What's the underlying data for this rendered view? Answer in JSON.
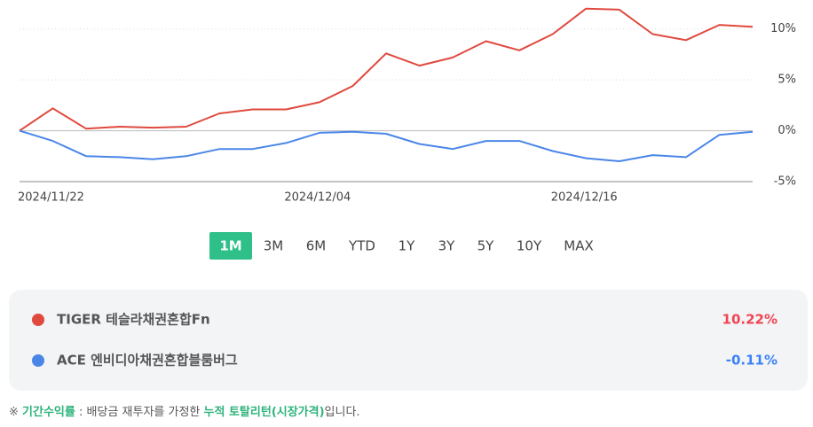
{
  "chart_data": {
    "type": "line",
    "categories": [
      "2024/11/22",
      null,
      null,
      null,
      null,
      null,
      null,
      null,
      "2024/12/04",
      null,
      null,
      null,
      null,
      null,
      null,
      null,
      "2024/12/16",
      null,
      null,
      null,
      null,
      null,
      null
    ],
    "series": [
      {
        "name": "TIGER 테슬라채권혼합Fn",
        "color": "#e0493e",
        "return_label": "10.22%",
        "return_color": "#f04452",
        "values": [
          0,
          2.2,
          0.2,
          0.4,
          0.3,
          0.4,
          1.7,
          2.1,
          2.1,
          2.8,
          4.4,
          7.6,
          6.4,
          7.2,
          8.8,
          7.9,
          9.5,
          12.0,
          11.9,
          9.5,
          8.9,
          10.4,
          10.22
        ]
      },
      {
        "name": "ACE 엔비디아채권혼합블룸버그",
        "color": "#4a86e8",
        "return_label": "-0.11%",
        "return_color": "#3b82f6",
        "values": [
          0,
          -1.0,
          -2.5,
          -2.6,
          -2.8,
          -2.5,
          -1.8,
          -1.8,
          -1.2,
          -0.2,
          -0.1,
          -0.3,
          -1.3,
          -1.8,
          -1.0,
          -1.0,
          -2.0,
          -2.7,
          -3.0,
          -2.4,
          -2.6,
          -0.4,
          -0.11
        ]
      }
    ],
    "ylim": [
      -5,
      12.5
    ],
    "yticks": [
      {
        "value": -5,
        "label": "-5%"
      },
      {
        "value": 0,
        "label": "0%"
      },
      {
        "value": 5,
        "label": "5%"
      },
      {
        "value": 10,
        "label": "10%"
      }
    ],
    "grid": true
  },
  "periods": [
    "1M",
    "3M",
    "6M",
    "YTD",
    "1Y",
    "3Y",
    "5Y",
    "10Y",
    "MAX"
  ],
  "selected_period": "1M",
  "footnote": {
    "mark": "※",
    "term": "기간수익률",
    "middle": ": 배당금 재투자를 가정한",
    "highlight": "누적 토탈리턴(시장가격)",
    "end": "입니다."
  }
}
